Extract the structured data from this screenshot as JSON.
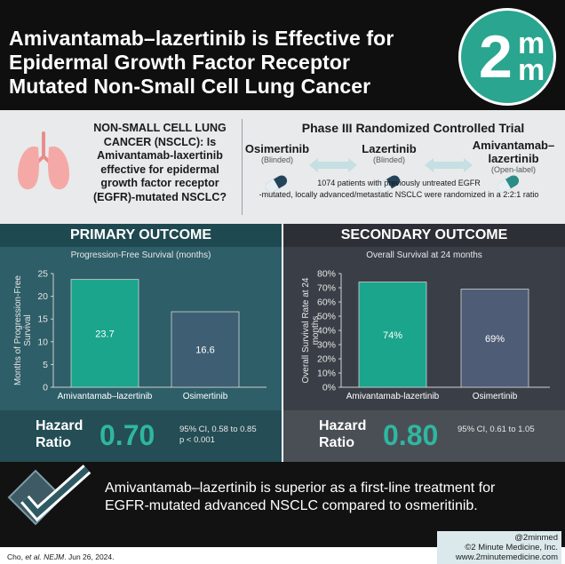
{
  "header": {
    "title_line1": "Amivantamab–lazertinib is Effective for",
    "title_line2": "Epidermal Growth Factor Receptor",
    "title_line3": "Mutated Non-Small Cell Lung Cancer",
    "logo_big": "2",
    "logo_small1": "m",
    "logo_small2": "m",
    "logo_color": "#2aa58f"
  },
  "question": {
    "icon": "lungs-icon",
    "line1": "NON-SMALL CELL LUNG",
    "line2": "CANCER (NSCLC): Is",
    "line3": "Amivantamab-laxertinib",
    "line4": "effective for epidermal",
    "line5": "growth factor receptor",
    "line6": "(EGFR)-mutated NSCLC?"
  },
  "trial": {
    "title": "Phase III Randomized Controlled Trial",
    "arms": [
      {
        "name": "Osimertinib",
        "sub": "(Blinded)"
      },
      {
        "name": "Lazertinib",
        "sub": "(Blinded)"
      },
      {
        "name_line1": "Amivantamab–",
        "name_line2": "lazertinib",
        "sub": "(Open-label)"
      }
    ],
    "desc_line1": "1074 patients with previously untreated EGFR",
    "desc_line2": "-mutated, locally advanced/metastatic NSCLC were randomized in a 2:2:1 ratio"
  },
  "primary": {
    "heading": "PRIMARY OUTCOME",
    "subtitle": "Progression-Free Survival (months)",
    "hr_label_line1": "Hazard",
    "hr_label_line2": "Ratio",
    "hr_value": "0.70",
    "ci_line1": "95% CI, 0.58 to 0.85",
    "ci_line2": "p < 0.001"
  },
  "secondary": {
    "heading": "SECONDARY OUTCOME",
    "subtitle": "Overall Survival at 24 months",
    "hr_label_line1": "Hazard",
    "hr_label_line2": "Ratio",
    "hr_value": "0.80",
    "ci_line1": "95% CI, 0.61 to 1.05"
  },
  "chart_data": [
    {
      "type": "bar",
      "categories": [
        "Amivantamab–lazertinib",
        "Osimertinib"
      ],
      "values": [
        23.7,
        16.6
      ],
      "value_labels": [
        "23.7",
        "16.6"
      ],
      "ylabel_line1": "Months of Progression-Free",
      "ylabel_line2": "Survival",
      "ylim": [
        0,
        25
      ],
      "yticks": [
        "0",
        "5",
        "10",
        "15",
        "20",
        "25"
      ],
      "colors": [
        "#1aa58c",
        "#3e5f73"
      ]
    },
    {
      "type": "bar",
      "categories": [
        "Amivantamab-lazertinib",
        "Osimertinib"
      ],
      "values": [
        74,
        69
      ],
      "value_labels": [
        "74%",
        "69%"
      ],
      "ylabel_line1": "Overall Survival Rate at 24",
      "ylabel_line2": "months",
      "ylim": [
        0,
        80
      ],
      "yticks": [
        "0%",
        "10%",
        "20%",
        "30%",
        "40%",
        "50%",
        "60%",
        "70%",
        "80%"
      ],
      "colors": [
        "#1aa58c",
        "#4e5d75"
      ]
    }
  ],
  "conclusion": {
    "icon": "checkmark-icon",
    "line1": "Amivantamab–lazertinib is superior as a first-line treatment for",
    "line2": "EGFR-mutated advanced NSCLC compared to osmeritinib."
  },
  "footer": {
    "citation_prefix": "Cho, ",
    "citation_italic": "et al. NEJM",
    "citation_suffix": ". Jun 26, 2024.",
    "handle": "@2minmed",
    "copyright": "©2 Minute Medicine, Inc.",
    "website": "www.2minutemedicine.com"
  }
}
